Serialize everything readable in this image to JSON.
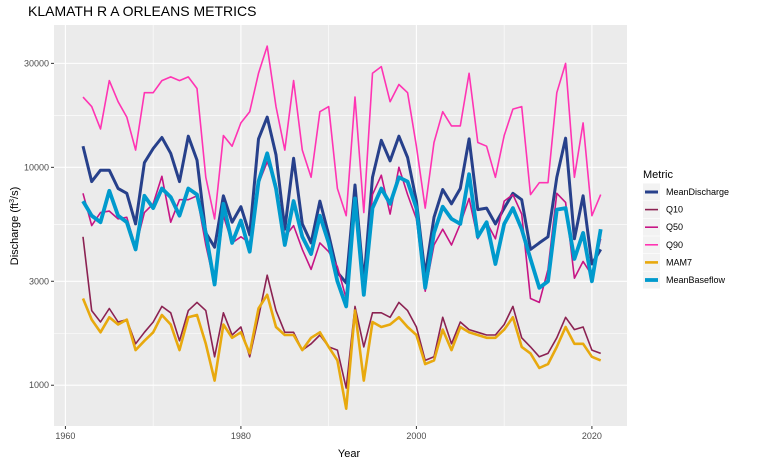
{
  "chart_data": {
    "type": "line",
    "title": "KLAMATH R A ORLEANS  METRICS",
    "xlabel": "Year",
    "ylabel": "Discharge (ft³/s)",
    "ylabel_parts": {
      "pre": "Discharge (ft",
      "sup": "3",
      "post": "/s)"
    },
    "y_scale": "log10",
    "xlim": [
      1958.7,
      2024
    ],
    "ylim": [
      650,
      45000
    ],
    "x_ticks": [
      1960,
      1980,
      2000,
      2020
    ],
    "x_tick_labels": [
      "1960",
      "1980",
      "2000",
      "2020"
    ],
    "y_ticks": [
      1000,
      3000,
      10000,
      30000
    ],
    "y_tick_labels": [
      "1000",
      "3000",
      "10000",
      "30000"
    ],
    "grid": true,
    "legend": {
      "title": "Metric",
      "position": "right"
    },
    "x": [
      1962,
      1963,
      1964,
      1965,
      1966,
      1967,
      1968,
      1969,
      1970,
      1971,
      1972,
      1973,
      1974,
      1975,
      1976,
      1977,
      1978,
      1979,
      1980,
      1981,
      1982,
      1983,
      1984,
      1985,
      1986,
      1987,
      1988,
      1989,
      1990,
      1991,
      1992,
      1993,
      1994,
      1995,
      1996,
      1997,
      1998,
      1999,
      2000,
      2001,
      2002,
      2003,
      2004,
      2005,
      2006,
      2007,
      2008,
      2009,
      2010,
      2011,
      2012,
      2013,
      2014,
      2015,
      2016,
      2017,
      2018,
      2019,
      2020,
      2021
    ],
    "series": [
      {
        "name": "MeanDischarge",
        "color": "#27408b",
        "width": 3,
        "values": [
          12500,
          8600,
          9700,
          9700,
          8000,
          7600,
          5500,
          10500,
          12200,
          13700,
          11600,
          8600,
          13900,
          10800,
          5000,
          4300,
          7400,
          5600,
          6600,
          4900,
          13500,
          17000,
          11400,
          5200,
          11000,
          5500,
          4500,
          7000,
          4900,
          3300,
          2950,
          8300,
          2950,
          9000,
          13300,
          10700,
          13900,
          11100,
          7000,
          3200,
          5900,
          7900,
          6800,
          8000,
          13500,
          6400,
          6500,
          5500,
          6500,
          7600,
          7100,
          4200,
          4500,
          4800,
          9000,
          13600,
          4700,
          7400,
          3600,
          4200
        ]
      },
      {
        "name": "Q10",
        "color": "#8b2252",
        "width": 1.6,
        "values": [
          4800,
          2200,
          1950,
          2250,
          1950,
          2000,
          1550,
          1750,
          1950,
          2300,
          2150,
          1600,
          2200,
          2400,
          2200,
          1350,
          2150,
          1700,
          1850,
          1350,
          2050,
          3200,
          2200,
          1750,
          1750,
          1450,
          1550,
          1700,
          1500,
          1450,
          970,
          2300,
          1500,
          2150,
          2150,
          2050,
          2400,
          2200,
          1850,
          1300,
          1350,
          2050,
          1550,
          1950,
          1800,
          1750,
          1700,
          1700,
          1900,
          2300,
          1650,
          1500,
          1350,
          1400,
          1650,
          2050,
          1800,
          1850,
          1450,
          1400
        ]
      },
      {
        "name": "Q50",
        "color": "#c71585",
        "width": 1.6,
        "values": [
          7600,
          5400,
          6200,
          6300,
          5800,
          5900,
          4300,
          6200,
          6800,
          9100,
          5600,
          7100,
          7100,
          7400,
          4400,
          2900,
          6000,
          4500,
          4800,
          4500,
          8400,
          10600,
          8400,
          4800,
          5400,
          4200,
          3400,
          4500,
          4100,
          3500,
          2500,
          7000,
          2700,
          7500,
          9200,
          6100,
          10000,
          7500,
          5800,
          2700,
          4400,
          5200,
          4400,
          5500,
          7200,
          4700,
          5600,
          4700,
          7000,
          7500,
          6100,
          2500,
          2400,
          3400,
          7600,
          6900,
          3100,
          3700,
          3200,
          4700
        ]
      },
      {
        "name": "Q90",
        "color": "#ff34b3",
        "width": 1.6,
        "values": [
          21000,
          19000,
          15000,
          25000,
          20000,
          17000,
          12000,
          22000,
          22000,
          25000,
          26000,
          25000,
          26000,
          23000,
          9000,
          5800,
          14000,
          12500,
          16000,
          18000,
          27000,
          36000,
          19000,
          12000,
          25000,
          12000,
          9000,
          18000,
          19000,
          8000,
          6000,
          21000,
          6200,
          27000,
          29000,
          20000,
          24000,
          22000,
          12500,
          6500,
          13000,
          18000,
          15500,
          15500,
          27000,
          13000,
          12500,
          9000,
          14000,
          18500,
          19000,
          7500,
          8500,
          8500,
          22000,
          30000,
          9000,
          16000,
          6000,
          7500
        ]
      },
      {
        "name": "MAM7",
        "color": "#e8a90e",
        "width": 2.6,
        "values": [
          2500,
          2000,
          1750,
          2050,
          1900,
          2000,
          1450,
          1600,
          1750,
          2100,
          1900,
          1450,
          2050,
          2100,
          1550,
          1050,
          1900,
          1650,
          1750,
          1400,
          2250,
          2600,
          1850,
          1700,
          1700,
          1450,
          1650,
          1750,
          1500,
          1300,
          780,
          2200,
          1050,
          1950,
          1850,
          1900,
          2050,
          1850,
          1700,
          1250,
          1300,
          1800,
          1450,
          1850,
          1750,
          1700,
          1650,
          1650,
          1800,
          2050,
          1500,
          1400,
          1200,
          1250,
          1500,
          1850,
          1550,
          1550,
          1350,
          1300
        ]
      },
      {
        "name": "MeanBaseflow",
        "color": "#009acd",
        "width": 3.8,
        "values": [
          7000,
          6000,
          5600,
          7800,
          6000,
          5600,
          4200,
          7400,
          6500,
          8000,
          7300,
          6000,
          8000,
          7500,
          5000,
          2900,
          6800,
          4500,
          5700,
          4100,
          8600,
          11600,
          8000,
          4400,
          7000,
          4800,
          4000,
          6000,
          4500,
          3000,
          2300,
          7200,
          2600,
          6500,
          8000,
          6800,
          9000,
          8600,
          6500,
          2800,
          5000,
          6600,
          5800,
          5500,
          9300,
          4800,
          5600,
          3600,
          5500,
          6500,
          5200,
          3800,
          2800,
          3000,
          6400,
          6500,
          3800,
          5000,
          3000,
          5200
        ]
      }
    ]
  }
}
